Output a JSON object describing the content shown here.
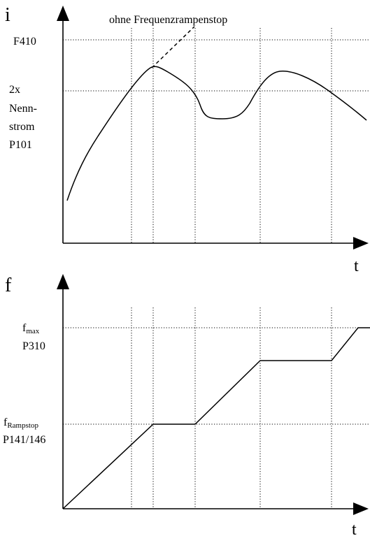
{
  "top_chart": {
    "y_axis_label": "i",
    "x_axis_label": "t",
    "annotation": "ohne Frequenzrampenstop",
    "level_labels": {
      "f410": "F410",
      "current_line1": "2x",
      "current_line2": "Nenn-",
      "current_line3": "strom",
      "current_line4": "P101"
    }
  },
  "bottom_chart": {
    "y_axis_label": "f",
    "x_axis_label": "t",
    "fmax_base": "f",
    "fmax_sub": "max",
    "fmax_param": "P310",
    "framp_base": "f",
    "framp_sub": "Rampstop",
    "framp_param": "P141/146"
  }
}
